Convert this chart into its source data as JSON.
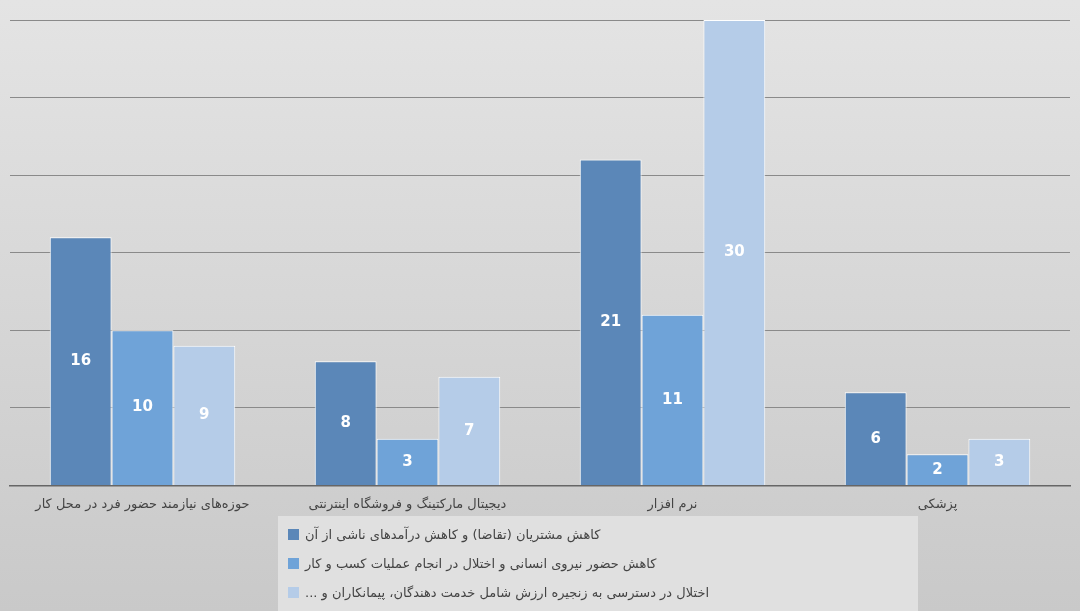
{
  "chart_data": {
    "type": "bar",
    "categories": [
      "حوزه‌های نیازمند حضور فرد در محل کار",
      "دیجیتال مارکتینگ و فروشگاه اینترنتی",
      "نرم افزار",
      "پزشکی"
    ],
    "series": [
      {
        "name": "کاهش مشتریان (تقاضا) و کاهش درآمدهای ناشی از آن",
        "color": "#5b87b8",
        "values": [
          16,
          8,
          21,
          6
        ]
      },
      {
        "name": "کاهش حضور نیروی انسانی و اختلال در انجام عملیات کسب و کار",
        "color": "#6fa3d8",
        "values": [
          10,
          3,
          11,
          2
        ]
      },
      {
        "name": "اختلال در دسترسی به زنجیره ارزش شامل خدمت دهندگان، پیمانکاران و ...",
        "color": "#b5cce8",
        "values": [
          9,
          7,
          30,
          3
        ]
      }
    ],
    "ylim": [
      0,
      30
    ],
    "yticks": [
      {
        "value": 0,
        "label": null
      },
      {
        "value": 5,
        "label": null
      },
      {
        "value": 10,
        "label": null
      },
      {
        "value": 15,
        "label": null
      },
      {
        "value": 20,
        "label": null
      },
      {
        "value": 25,
        "label": null
      },
      {
        "value": 30,
        "label": null
      }
    ],
    "tick_labels": "x",
    "grid": "y",
    "data_labels": true,
    "legend": "bottom"
  }
}
